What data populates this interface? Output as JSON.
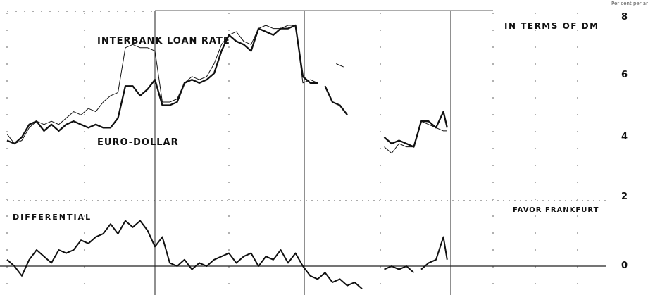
{
  "chart_data": {
    "type": "line",
    "title": "",
    "unit_label": "Per cent per annum",
    "xlabel": "",
    "ylabel": "",
    "ylim": [
      0,
      8
    ],
    "yticks": [
      "0",
      "2",
      "4",
      "6",
      "8"
    ],
    "grid": true,
    "x_count": 121,
    "panel_label_top": "IN TERMS OF DM",
    "panel_label_bottom": "FAVOR FRANKFURT",
    "series": [
      {
        "name": "INTERBANK LOAN RATE",
        "segments": [
          [
            [
              0,
              4.0
            ],
            [
              2,
              3.7
            ],
            [
              4,
              3.8
            ],
            [
              6,
              4.2
            ],
            [
              8,
              4.4
            ],
            [
              10,
              4.3
            ],
            [
              12,
              4.4
            ],
            [
              14,
              4.3
            ],
            [
              16,
              4.5
            ],
            [
              18,
              4.7
            ],
            [
              20,
              4.6
            ],
            [
              22,
              4.8
            ],
            [
              24,
              4.7
            ],
            [
              26,
              5.0
            ],
            [
              28,
              5.2
            ],
            [
              30,
              5.3
            ],
            [
              32,
              6.7
            ],
            [
              34,
              6.8
            ],
            [
              36,
              6.7
            ],
            [
              38,
              6.7
            ],
            [
              40,
              6.6
            ],
            [
              42,
              5.0
            ],
            [
              44,
              5.0
            ],
            [
              46,
              5.1
            ],
            [
              48,
              5.6
            ],
            [
              50,
              5.8
            ],
            [
              52,
              5.7
            ],
            [
              54,
              5.8
            ],
            [
              56,
              6.2
            ],
            [
              58,
              6.8
            ],
            [
              60,
              7.1
            ],
            [
              62,
              7.2
            ],
            [
              64,
              6.9
            ],
            [
              66,
              6.8
            ],
            [
              68,
              7.3
            ],
            [
              70,
              7.4
            ],
            [
              72,
              7.3
            ],
            [
              74,
              7.3
            ],
            [
              76,
              7.4
            ],
            [
              78,
              7.4
            ],
            [
              80,
              5.6
            ],
            [
              82,
              5.7
            ],
            [
              84,
              5.6
            ]
          ],
          [
            [
              89,
              6.2
            ],
            [
              91,
              6.1
            ]
          ],
          [
            [
              102,
              3.6
            ],
            [
              104,
              3.4
            ],
            [
              106,
              3.7
            ],
            [
              108,
              3.6
            ],
            [
              110,
              3.6
            ],
            [
              112,
              4.4
            ],
            [
              114,
              4.3
            ],
            [
              116,
              4.2
            ],
            [
              118,
              4.1
            ],
            [
              119,
              4.1
            ]
          ]
        ]
      },
      {
        "name": "EURO-DOLLAR",
        "segments": [
          [
            [
              0,
              3.8
            ],
            [
              2,
              3.7
            ],
            [
              4,
              3.9
            ],
            [
              6,
              4.3
            ],
            [
              8,
              4.4
            ],
            [
              10,
              4.1
            ],
            [
              12,
              4.3
            ],
            [
              14,
              4.1
            ],
            [
              16,
              4.3
            ],
            [
              18,
              4.4
            ],
            [
              20,
              4.3
            ],
            [
              22,
              4.2
            ],
            [
              24,
              4.3
            ],
            [
              26,
              4.2
            ],
            [
              28,
              4.2
            ],
            [
              30,
              4.5
            ],
            [
              32,
              5.5
            ],
            [
              34,
              5.5
            ],
            [
              36,
              5.2
            ],
            [
              38,
              5.4
            ],
            [
              40,
              5.7
            ],
            [
              42,
              4.9
            ],
            [
              44,
              4.9
            ],
            [
              46,
              5.0
            ],
            [
              48,
              5.6
            ],
            [
              50,
              5.7
            ],
            [
              52,
              5.6
            ],
            [
              54,
              5.7
            ],
            [
              56,
              5.9
            ],
            [
              58,
              6.6
            ],
            [
              60,
              7.1
            ],
            [
              62,
              6.9
            ],
            [
              64,
              6.8
            ],
            [
              66,
              6.6
            ],
            [
              68,
              7.3
            ],
            [
              70,
              7.2
            ],
            [
              72,
              7.1
            ],
            [
              74,
              7.3
            ],
            [
              76,
              7.3
            ],
            [
              78,
              7.4
            ],
            [
              80,
              5.8
            ],
            [
              82,
              5.6
            ],
            [
              84,
              5.6
            ]
          ],
          [
            [
              86,
              5.5
            ],
            [
              88,
              5.0
            ],
            [
              90,
              4.9
            ],
            [
              92,
              4.6
            ]
          ],
          [
            [
              102,
              3.9
            ],
            [
              104,
              3.7
            ],
            [
              106,
              3.8
            ],
            [
              108,
              3.7
            ],
            [
              110,
              3.6
            ],
            [
              112,
              4.4
            ],
            [
              114,
              4.4
            ],
            [
              116,
              4.2
            ],
            [
              118,
              4.7
            ],
            [
              119,
              4.2
            ]
          ]
        ]
      },
      {
        "name": "DIFFERENTIAL",
        "segments": [
          [
            [
              0,
              0.2
            ],
            [
              2,
              0.0
            ],
            [
              4,
              -0.3
            ],
            [
              6,
              0.2
            ],
            [
              8,
              0.5
            ],
            [
              10,
              0.3
            ],
            [
              12,
              0.1
            ],
            [
              14,
              0.5
            ],
            [
              16,
              0.4
            ],
            [
              18,
              0.5
            ],
            [
              20,
              0.8
            ],
            [
              22,
              0.7
            ],
            [
              24,
              0.9
            ],
            [
              26,
              1.0
            ],
            [
              28,
              1.3
            ],
            [
              30,
              1.0
            ],
            [
              32,
              1.4
            ],
            [
              34,
              1.2
            ],
            [
              36,
              1.4
            ],
            [
              38,
              1.1
            ],
            [
              40,
              0.6
            ],
            [
              42,
              0.9
            ],
            [
              44,
              0.1
            ],
            [
              46,
              0.0
            ],
            [
              48,
              0.2
            ],
            [
              50,
              -0.1
            ],
            [
              52,
              0.1
            ],
            [
              54,
              0.0
            ],
            [
              56,
              0.2
            ],
            [
              58,
              0.3
            ],
            [
              60,
              0.4
            ],
            [
              62,
              0.1
            ],
            [
              64,
              0.3
            ],
            [
              66,
              0.4
            ],
            [
              68,
              0.0
            ],
            [
              70,
              0.3
            ],
            [
              72,
              0.2
            ],
            [
              74,
              0.5
            ],
            [
              76,
              0.1
            ],
            [
              78,
              0.4
            ],
            [
              80,
              0.0
            ],
            [
              82,
              -0.3
            ],
            [
              84,
              -0.4
            ],
            [
              86,
              -0.2
            ],
            [
              88,
              -0.5
            ],
            [
              90,
              -0.4
            ],
            [
              92,
              -0.6
            ],
            [
              94,
              -0.5
            ],
            [
              96,
              -0.7
            ]
          ],
          [
            [
              102,
              -0.1
            ],
            [
              104,
              0.0
            ],
            [
              106,
              -0.1
            ],
            [
              108,
              0.0
            ],
            [
              110,
              -0.2
            ]
          ],
          [
            [
              112,
              -0.1
            ],
            [
              114,
              0.1
            ],
            [
              116,
              0.2
            ],
            [
              118,
              0.9
            ],
            [
              119,
              0.2
            ]
          ]
        ]
      }
    ]
  }
}
